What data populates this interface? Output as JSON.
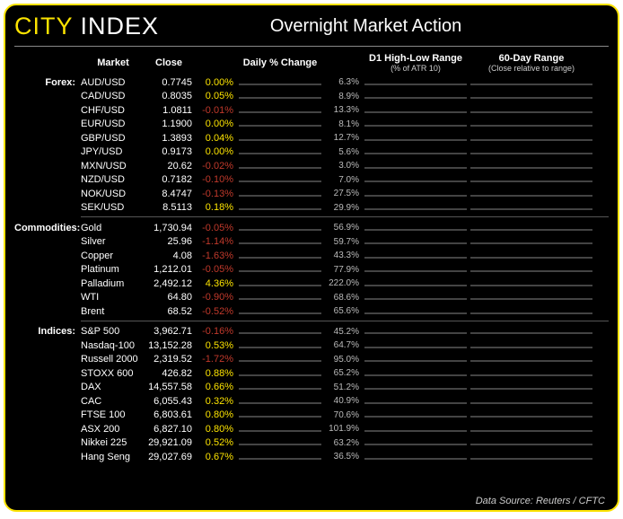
{
  "logo": {
    "city": "CITY",
    "index": "INDEX"
  },
  "title": "Overnight Market Action",
  "headers": {
    "market": "Market",
    "close": "Close",
    "daily": "Daily % Change",
    "d1": "D1 High-Low Range",
    "d1_sub": "(% of ATR 10)",
    "r60": "60-Day Range",
    "r60_sub": "(Close relative to range)"
  },
  "colors": {
    "accent": "#fce300",
    "bg": "#000000",
    "text": "#ffffff",
    "neg": "#c0392b",
    "border": "#444444",
    "white_bar": "#ffffff"
  },
  "chart_scales": {
    "daily_pct_max": 0.2,
    "d1_pct_max": 100,
    "r60_min": 0,
    "r60_max": 100
  },
  "groups": [
    {
      "name": "Forex:",
      "rows": [
        {
          "market": "AUD/USD",
          "close": "0.7745",
          "pct": 0.0,
          "pct_txt": "0.00%",
          "daily_bar": 3,
          "daily_white": false,
          "d1": 6.3,
          "d1_txt": "6.3%",
          "d1_bar": 10,
          "r60_low": 58,
          "r60_close": 66
        },
        {
          "market": "CAD/USD",
          "close": "0.8035",
          "pct": 0.05,
          "pct_txt": "0.05%",
          "daily_bar": 5,
          "daily_white": false,
          "d1": 8.9,
          "d1_txt": "8.9%",
          "d1_bar": 14,
          "r60_low": 60,
          "r60_close": 98
        },
        {
          "market": "CHF/USD",
          "close": "1.0811",
          "pct": -0.01,
          "pct_txt": "-0.01%",
          "daily_bar": -1,
          "daily_white": true,
          "d1": 13.3,
          "d1_txt": "13.3%",
          "d1_bar": 22,
          "r60_low": 10,
          "r60_close": 35
        },
        {
          "market": "EUR/USD",
          "close": "1.1900",
          "pct": 0.0,
          "pct_txt": "0.00%",
          "daily_bar": 2,
          "daily_white": false,
          "d1": 8.1,
          "d1_txt": "8.1%",
          "d1_bar": 13,
          "r60_low": 12,
          "r60_close": 40
        },
        {
          "market": "GBP/USD",
          "close": "1.3893",
          "pct": 0.04,
          "pct_txt": "0.04%",
          "daily_bar": 4,
          "daily_white": false,
          "d1": 12.7,
          "d1_txt": "12.7%",
          "d1_bar": 20,
          "r60_low": 45,
          "r60_close": 78
        },
        {
          "market": "JPY/USD",
          "close": "0.9173",
          "pct": 0.0,
          "pct_txt": "0.00%",
          "daily_bar": 2,
          "daily_white": false,
          "d1": 5.6,
          "d1_txt": "5.6%",
          "d1_bar": 9,
          "r60_low": 0,
          "r60_close": 42
        },
        {
          "market": "MXN/USD",
          "close": "20.62",
          "pct": -0.02,
          "pct_txt": "-0.02%",
          "daily_bar": -2,
          "daily_white": true,
          "d1": 3.0,
          "d1_txt": "3.0%",
          "d1_bar": 5,
          "r60_low": 48,
          "r60_close": 62
        },
        {
          "market": "NZD/USD",
          "close": "0.7182",
          "pct": -0.1,
          "pct_txt": "-0.10%",
          "daily_bar": -9,
          "daily_white": true,
          "d1": 7.0,
          "d1_txt": "7.0%",
          "d1_bar": 11,
          "r60_low": 40,
          "r60_close": 58
        },
        {
          "market": "NOK/USD",
          "close": "8.4747",
          "pct": -0.13,
          "pct_txt": "-0.13%",
          "daily_bar": -12,
          "daily_white": true,
          "d1": 27.5,
          "d1_txt": "27.5%",
          "d1_bar": 45,
          "r60_low": 62,
          "r60_close": 95
        },
        {
          "market": "SEK/USD",
          "close": "8.5113",
          "pct": 0.18,
          "pct_txt": "0.18%",
          "daily_bar": 45,
          "daily_white": false,
          "d1": 29.9,
          "d1_txt": "29.9%",
          "d1_bar": 48,
          "r60_low": 55,
          "r60_close": 92
        }
      ]
    },
    {
      "name": "Commodities:",
      "rows": [
        {
          "market": "Gold",
          "close": "1,730.94",
          "pct": -0.05,
          "pct_txt": "-0.05%",
          "daily_bar": -3,
          "daily_white": true,
          "d1": 56.9,
          "d1_txt": "56.9%",
          "d1_bar": 62,
          "r60_low": 0,
          "r60_close": 22
        },
        {
          "market": "Silver",
          "close": "25.96",
          "pct": -1.14,
          "pct_txt": "-1.14%",
          "daily_bar": -10,
          "daily_white": true,
          "d1": 59.7,
          "d1_txt": "59.7%",
          "d1_bar": 65,
          "r60_low": 40,
          "r60_close": 55
        },
        {
          "market": "Copper",
          "close": "4.08",
          "pct": -1.63,
          "pct_txt": "-1.63%",
          "daily_bar": -14,
          "daily_white": true,
          "d1": 43.3,
          "d1_txt": "43.3%",
          "d1_bar": 47,
          "r60_low": 55,
          "r60_close": 90
        },
        {
          "market": "Platinum",
          "close": "1,212.01",
          "pct": -0.05,
          "pct_txt": "-0.05%",
          "daily_bar": -3,
          "daily_white": true,
          "d1": 77.9,
          "d1_txt": "77.9%",
          "d1_bar": 85,
          "r60_low": 55,
          "r60_close": 95
        },
        {
          "market": "Palladium",
          "close": "2,492.12",
          "pct": 4.36,
          "pct_txt": "4.36%",
          "daily_bar": 50,
          "daily_white": false,
          "d1": 222.0,
          "d1_txt": "222.0%",
          "d1_bar": 100,
          "r60_low": 45,
          "r60_close": 80
        },
        {
          "market": "WTI",
          "close": "64.80",
          "pct": -0.9,
          "pct_txt": "-0.90%",
          "daily_bar": -8,
          "daily_white": true,
          "d1": 68.6,
          "d1_txt": "68.6%",
          "d1_bar": 74,
          "r60_low": 58,
          "r60_close": 92
        },
        {
          "market": "Brent",
          "close": "68.52",
          "pct": -0.52,
          "pct_txt": "-0.52%",
          "daily_bar": -5,
          "daily_white": true,
          "d1": 65.6,
          "d1_txt": "65.6%",
          "d1_bar": 71,
          "r60_low": 58,
          "r60_close": 92
        }
      ]
    },
    {
      "name": "Indices:",
      "rows": [
        {
          "market": "S&P 500",
          "close": "3,962.71",
          "pct": -0.16,
          "pct_txt": "-0.16%",
          "daily_bar": -12,
          "daily_white": true,
          "d1": 45.2,
          "d1_txt": "45.2%",
          "d1_bar": 45,
          "r60_low": 62,
          "r60_close": 96
        },
        {
          "market": "Nasdaq-100",
          "close": "13,152.28",
          "pct": 0.53,
          "pct_txt": "0.53%",
          "daily_bar": 18,
          "daily_white": false,
          "d1": 64.7,
          "d1_txt": "64.7%",
          "d1_bar": 65,
          "r60_low": 45,
          "r60_close": 72
        },
        {
          "market": "Russell 2000",
          "close": "2,319.52",
          "pct": -1.72,
          "pct_txt": "-1.72%",
          "daily_bar": -50,
          "daily_white": true,
          "d1": 95.0,
          "d1_txt": "95.0%",
          "d1_bar": 95,
          "r60_low": 60,
          "r60_close": 95
        },
        {
          "market": "STOXX 600",
          "close": "426.82",
          "pct": 0.88,
          "pct_txt": "0.88%",
          "daily_bar": 28,
          "daily_white": false,
          "d1": 65.2,
          "d1_txt": "65.2%",
          "d1_bar": 65,
          "r60_low": 55,
          "r60_close": 98
        },
        {
          "market": "DAX",
          "close": "14,557.58",
          "pct": 0.66,
          "pct_txt": "0.66%",
          "daily_bar": 22,
          "daily_white": false,
          "d1": 51.2,
          "d1_txt": "51.2%",
          "d1_bar": 51,
          "r60_low": 55,
          "r60_close": 98
        },
        {
          "market": "CAC",
          "close": "6,055.43",
          "pct": 0.32,
          "pct_txt": "0.32%",
          "daily_bar": 12,
          "daily_white": false,
          "d1": 40.9,
          "d1_txt": "40.9%",
          "d1_bar": 41,
          "r60_low": 58,
          "r60_close": 98
        },
        {
          "market": "FTSE 100",
          "close": "6,803.61",
          "pct": 0.8,
          "pct_txt": "0.80%",
          "daily_bar": 26,
          "daily_white": false,
          "d1": 70.6,
          "d1_txt": "70.6%",
          "d1_bar": 71,
          "r60_low": 48,
          "r60_close": 85
        },
        {
          "market": "ASX 200",
          "close": "6,827.10",
          "pct": 0.8,
          "pct_txt": "0.80%",
          "daily_bar": 26,
          "daily_white": false,
          "d1": 101.9,
          "d1_txt": "101.9%",
          "d1_bar": 100,
          "r60_low": 48,
          "r60_close": 82
        },
        {
          "market": "Nikkei 225",
          "close": "29,921.09",
          "pct": 0.52,
          "pct_txt": "0.52%",
          "daily_bar": 18,
          "daily_white": false,
          "d1": 63.2,
          "d1_txt": "63.2%",
          "d1_bar": 63,
          "r60_low": 68,
          "r60_close": 95
        },
        {
          "market": "Hang Seng",
          "close": "29,027.69",
          "pct": 0.67,
          "pct_txt": "0.67%",
          "daily_bar": 22,
          "daily_white": false,
          "d1": 36.5,
          "d1_txt": "36.5%",
          "d1_bar": 37,
          "r60_low": 45,
          "r60_close": 68
        }
      ]
    }
  ],
  "footer": "Data Source: Reuters / CFTC"
}
